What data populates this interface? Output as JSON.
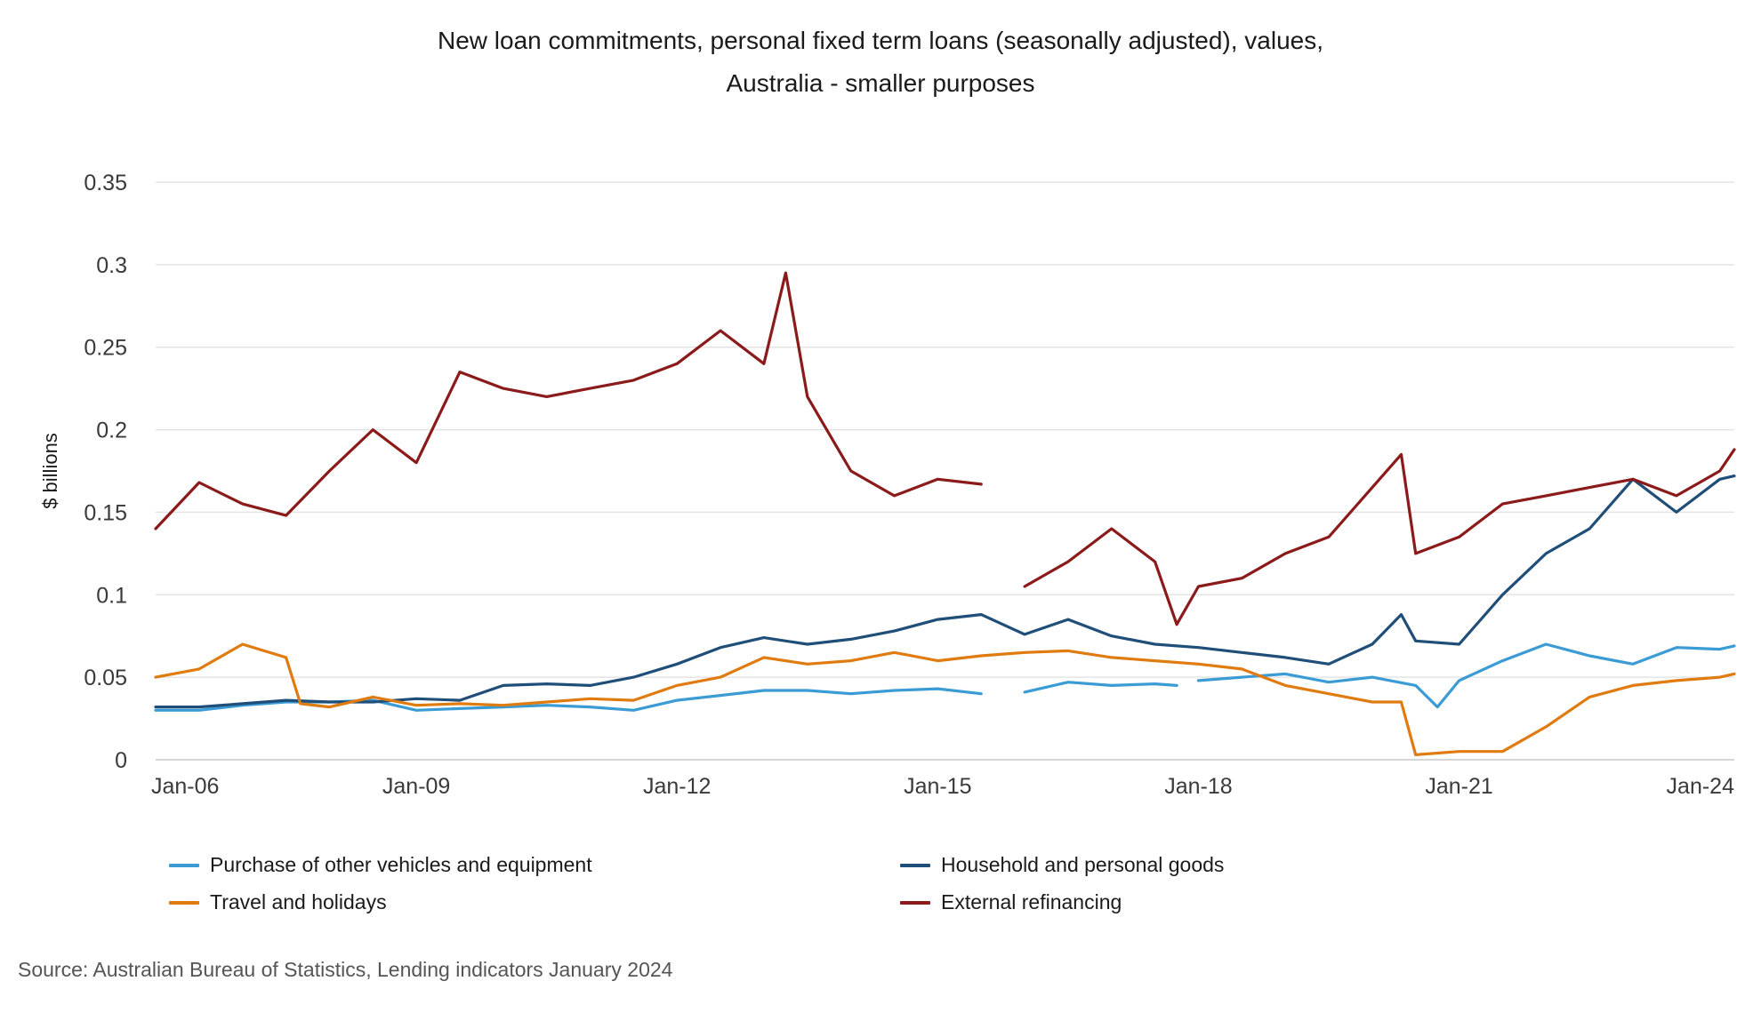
{
  "title_line1": "New loan commitments, personal fixed term loans (seasonally adjusted), values,",
  "title_line2": "Australia - smaller purposes",
  "source": "Source: Australian Bureau of Statistics, Lending indicators January 2024",
  "chart_data": {
    "type": "line",
    "title": "New loan commitments, personal fixed term loans (seasonally adjusted), values, Australia - smaller purposes",
    "xlabel": "",
    "ylabel": "$ billions",
    "xlim": [
      "2006-01",
      "2024-03"
    ],
    "ylim": [
      0,
      0.35
    ],
    "x_ticks": [
      {
        "date": "2006-01",
        "label": "Jan-06"
      },
      {
        "date": "2009-01",
        "label": "Jan-09"
      },
      {
        "date": "2012-01",
        "label": "Jan-12"
      },
      {
        "date": "2015-01",
        "label": "Jan-15"
      },
      {
        "date": "2018-01",
        "label": "Jan-18"
      },
      {
        "date": "2021-01",
        "label": "Jan-21"
      },
      {
        "date": "2024-01",
        "label": "Jan-24"
      }
    ],
    "y_ticks": [
      {
        "value": 0,
        "label": "0"
      },
      {
        "value": 0.05,
        "label": "0.05"
      },
      {
        "value": 0.1,
        "label": "0.1"
      },
      {
        "value": 0.15,
        "label": "0.15"
      },
      {
        "value": 0.2,
        "label": "0.2"
      },
      {
        "value": 0.25,
        "label": "0.25"
      },
      {
        "value": 0.3,
        "label": "0.3"
      },
      {
        "value": 0.35,
        "label": "0.35"
      }
    ],
    "grid": "horizontal",
    "legend_position": "bottom",
    "series": [
      {
        "name": "Purchase of other vehicles and equipment",
        "color": "#3a9bd5",
        "points": [
          [
            "2006-01",
            0.03
          ],
          [
            "2006-07",
            0.03
          ],
          [
            "2007-01",
            0.033
          ],
          [
            "2007-07",
            0.035
          ],
          [
            "2008-01",
            0.035
          ],
          [
            "2008-07",
            0.036
          ],
          [
            "2009-01",
            0.03
          ],
          [
            "2009-07",
            0.031
          ],
          [
            "2010-01",
            0.032
          ],
          [
            "2010-07",
            0.033
          ],
          [
            "2011-01",
            0.032
          ],
          [
            "2011-07",
            0.03
          ],
          [
            "2012-01",
            0.036
          ],
          [
            "2012-07",
            0.039
          ],
          [
            "2013-01",
            0.042
          ],
          [
            "2013-07",
            0.042
          ],
          [
            "2014-01",
            0.04
          ],
          [
            "2014-07",
            0.042
          ],
          [
            "2015-01",
            0.043
          ],
          [
            "2015-07",
            0.04
          ],
          null,
          [
            "2016-01",
            0.041
          ],
          [
            "2016-07",
            0.047
          ],
          [
            "2017-01",
            0.045
          ],
          [
            "2017-07",
            0.046
          ],
          [
            "2017-10",
            0.045
          ],
          null,
          [
            "2018-01",
            0.048
          ],
          [
            "2018-07",
            0.05
          ],
          [
            "2019-01",
            0.052
          ],
          [
            "2019-07",
            0.047
          ],
          [
            "2020-01",
            0.05
          ],
          [
            "2020-07",
            0.045
          ],
          [
            "2020-10",
            0.032
          ],
          [
            "2021-01",
            0.048
          ],
          [
            "2021-07",
            0.06
          ],
          [
            "2022-01",
            0.07
          ],
          [
            "2022-07",
            0.063
          ],
          [
            "2023-01",
            0.058
          ],
          [
            "2023-07",
            0.068
          ],
          [
            "2024-01",
            0.067
          ],
          [
            "2024-03",
            0.069
          ]
        ]
      },
      {
        "name": "Household and personal goods",
        "color": "#1f4e79",
        "points": [
          [
            "2006-01",
            0.032
          ],
          [
            "2006-07",
            0.032
          ],
          [
            "2007-01",
            0.034
          ],
          [
            "2007-07",
            0.036
          ],
          [
            "2008-01",
            0.035
          ],
          [
            "2008-07",
            0.035
          ],
          [
            "2009-01",
            0.037
          ],
          [
            "2009-07",
            0.036
          ],
          [
            "2010-01",
            0.045
          ],
          [
            "2010-07",
            0.046
          ],
          [
            "2011-01",
            0.045
          ],
          [
            "2011-07",
            0.05
          ],
          [
            "2012-01",
            0.058
          ],
          [
            "2012-07",
            0.068
          ],
          [
            "2013-01",
            0.074
          ],
          [
            "2013-07",
            0.07
          ],
          [
            "2014-01",
            0.073
          ],
          [
            "2014-07",
            0.078
          ],
          [
            "2015-01",
            0.085
          ],
          [
            "2015-07",
            0.088
          ],
          [
            "2016-01",
            0.076
          ],
          [
            "2016-07",
            0.085
          ],
          [
            "2017-01",
            0.075
          ],
          [
            "2017-07",
            0.07
          ],
          [
            "2018-01",
            0.068
          ],
          [
            "2018-07",
            0.065
          ],
          [
            "2019-01",
            0.062
          ],
          [
            "2019-07",
            0.058
          ],
          [
            "2020-01",
            0.07
          ],
          [
            "2020-05",
            0.088
          ],
          [
            "2020-07",
            0.072
          ],
          [
            "2021-01",
            0.07
          ],
          [
            "2021-07",
            0.1
          ],
          [
            "2022-01",
            0.125
          ],
          [
            "2022-07",
            0.14
          ],
          [
            "2023-01",
            0.17
          ],
          [
            "2023-07",
            0.15
          ],
          [
            "2024-01",
            0.17
          ],
          [
            "2024-03",
            0.172
          ]
        ]
      },
      {
        "name": "Travel and holidays",
        "color": "#e07b10",
        "points": [
          [
            "2006-01",
            0.05
          ],
          [
            "2006-07",
            0.055
          ],
          [
            "2007-01",
            0.07
          ],
          [
            "2007-07",
            0.062
          ],
          [
            "2007-09",
            0.034
          ],
          [
            "2008-01",
            0.032
          ],
          [
            "2008-07",
            0.038
          ],
          [
            "2009-01",
            0.033
          ],
          [
            "2009-07",
            0.034
          ],
          [
            "2010-01",
            0.033
          ],
          [
            "2010-07",
            0.035
          ],
          [
            "2011-01",
            0.037
          ],
          [
            "2011-07",
            0.036
          ],
          [
            "2012-01",
            0.045
          ],
          [
            "2012-07",
            0.05
          ],
          [
            "2013-01",
            0.062
          ],
          [
            "2013-07",
            0.058
          ],
          [
            "2014-01",
            0.06
          ],
          [
            "2014-07",
            0.065
          ],
          [
            "2015-01",
            0.06
          ],
          [
            "2015-07",
            0.063
          ],
          [
            "2016-01",
            0.065
          ],
          [
            "2016-07",
            0.066
          ],
          [
            "2017-01",
            0.062
          ],
          [
            "2017-07",
            0.06
          ],
          [
            "2018-01",
            0.058
          ],
          [
            "2018-07",
            0.055
          ],
          [
            "2019-01",
            0.045
          ],
          [
            "2019-07",
            0.04
          ],
          [
            "2020-01",
            0.035
          ],
          [
            "2020-05",
            0.035
          ],
          [
            "2020-07",
            0.003
          ],
          [
            "2021-01",
            0.005
          ],
          [
            "2021-07",
            0.005
          ],
          [
            "2022-01",
            0.02
          ],
          [
            "2022-07",
            0.038
          ],
          [
            "2023-01",
            0.045
          ],
          [
            "2023-07",
            0.048
          ],
          [
            "2024-01",
            0.05
          ],
          [
            "2024-03",
            0.052
          ]
        ]
      },
      {
        "name": "External refinancing",
        "color": "#8b1a1a",
        "points": [
          [
            "2006-01",
            0.14
          ],
          [
            "2006-07",
            0.168
          ],
          [
            "2007-01",
            0.155
          ],
          [
            "2007-07",
            0.148
          ],
          [
            "2008-01",
            0.175
          ],
          [
            "2008-07",
            0.2
          ],
          [
            "2009-01",
            0.18
          ],
          [
            "2009-07",
            0.235
          ],
          [
            "2010-01",
            0.225
          ],
          [
            "2010-07",
            0.22
          ],
          [
            "2011-01",
            0.225
          ],
          [
            "2011-07",
            0.23
          ],
          [
            "2012-01",
            0.24
          ],
          [
            "2012-07",
            0.26
          ],
          [
            "2013-01",
            0.24
          ],
          [
            "2013-04",
            0.295
          ],
          [
            "2013-07",
            0.22
          ],
          [
            "2014-01",
            0.175
          ],
          [
            "2014-07",
            0.16
          ],
          [
            "2015-01",
            0.17
          ],
          [
            "2015-07",
            0.167
          ],
          null,
          [
            "2016-01",
            0.105
          ],
          [
            "2016-07",
            0.12
          ],
          [
            "2017-01",
            0.14
          ],
          [
            "2017-07",
            0.12
          ],
          [
            "2017-10",
            0.082
          ],
          [
            "2018-01",
            0.105
          ],
          [
            "2018-07",
            0.11
          ],
          [
            "2019-01",
            0.125
          ],
          [
            "2019-07",
            0.135
          ],
          [
            "2020-01",
            0.165
          ],
          [
            "2020-05",
            0.185
          ],
          [
            "2020-07",
            0.125
          ],
          [
            "2021-01",
            0.135
          ],
          [
            "2021-07",
            0.155
          ],
          [
            "2022-01",
            0.16
          ],
          [
            "2022-07",
            0.165
          ],
          [
            "2023-01",
            0.17
          ],
          [
            "2023-07",
            0.16
          ],
          [
            "2024-01",
            0.175
          ],
          [
            "2024-03",
            0.188
          ]
        ]
      }
    ]
  }
}
